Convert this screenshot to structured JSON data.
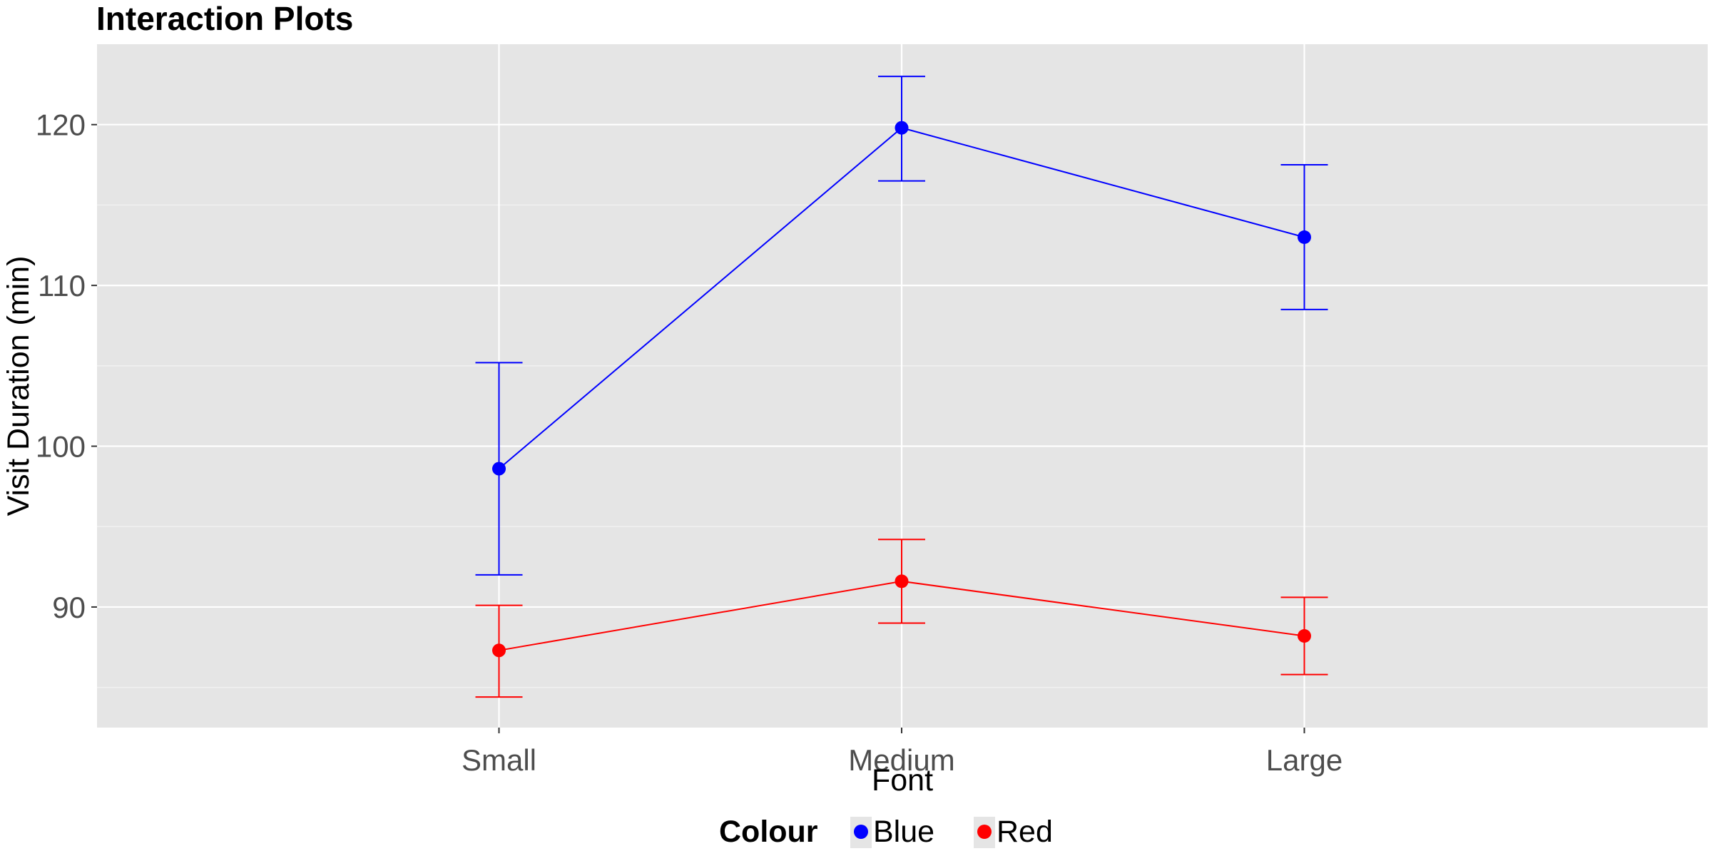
{
  "chart_data": {
    "type": "line",
    "title": "Interaction Plots",
    "xlabel": "Font",
    "ylabel": "Visit Duration (min)",
    "categories": [
      "Small",
      "Medium",
      "Large"
    ],
    "ylim": [
      82.5,
      125
    ],
    "yticks": [
      90,
      100,
      110,
      120
    ],
    "grid": true,
    "legend": {
      "title": "Colour",
      "position": "bottom"
    },
    "series": [
      {
        "name": "Blue",
        "color": "#0000ff",
        "values": [
          98.6,
          119.8,
          113.0
        ],
        "error_lower": [
          92.0,
          116.5,
          108.5
        ],
        "error_upper": [
          105.2,
          123.0,
          117.5
        ]
      },
      {
        "name": "Red",
        "color": "#ff0000",
        "values": [
          87.3,
          91.6,
          88.2
        ],
        "error_lower": [
          84.4,
          89.0,
          85.8
        ],
        "error_upper": [
          90.1,
          94.2,
          90.6
        ]
      }
    ]
  }
}
